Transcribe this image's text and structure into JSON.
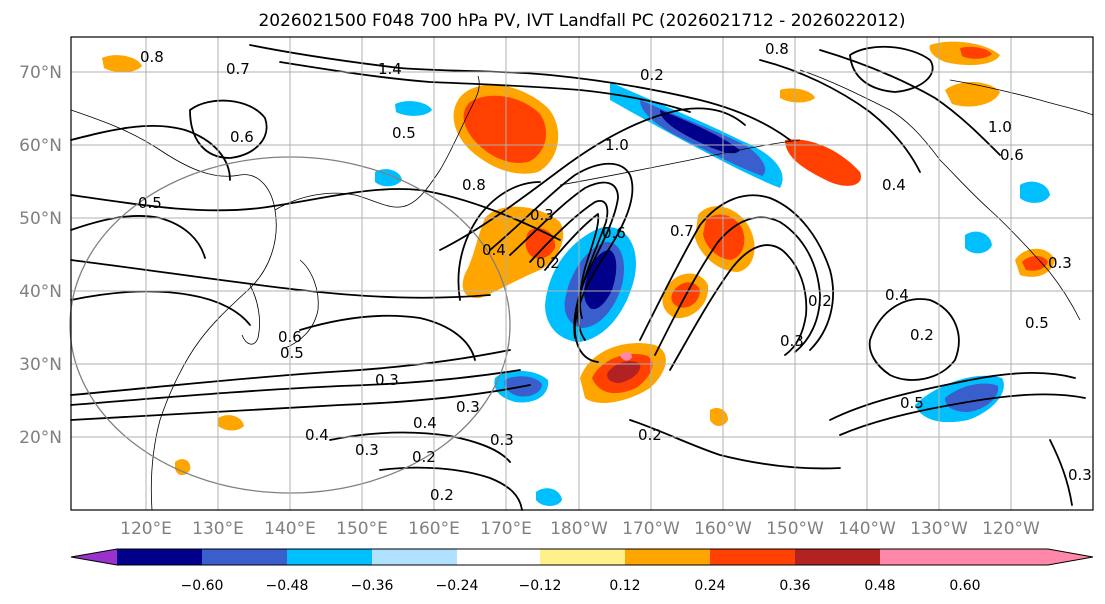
{
  "title": "2026021500 F048 700 hPa PV, IVT Landfall PC (2026021712 - 2026022012)",
  "latitude_labels": [
    "70°N",
    "60°N",
    "50°N",
    "40°N",
    "30°N",
    "20°N"
  ],
  "longitude_labels": [
    "120°E",
    "130°E",
    "140°E",
    "150°E",
    "160°E",
    "170°E",
    "180°W",
    "170°W",
    "160°W",
    "150°W",
    "140°W",
    "130°W",
    "120°W"
  ],
  "colorbar": {
    "tick_labels": [
      "−0.60",
      "−0.48",
      "−0.36",
      "−0.24",
      "−0.12",
      "0.12",
      "0.24",
      "0.36",
      "0.48",
      "0.60"
    ],
    "colors": [
      "#9932cc",
      "#00008b",
      "#3a5fcd",
      "#00bfff",
      "#b0e2ff",
      "#ffffff",
      "#fff08a",
      "#ffa500",
      "#ff4000",
      "#b22222",
      "#ff88aa"
    ]
  },
  "contour_labels": [
    "0.8",
    "0.7",
    "1.4",
    "0.2",
    "0.8",
    "0.6",
    "0.5",
    "0.8",
    "1.0",
    "0.4",
    "0.6",
    "0.5",
    "0.3",
    "0.2",
    "0.4",
    "0.6",
    "0.7",
    "0.3",
    "0.5",
    "0.3",
    "0.2",
    "0.4",
    "0.3",
    "0.4",
    "0.3",
    "0.2",
    "0.2",
    "0.3",
    "0.4",
    "0.2",
    "0.5",
    "0.6",
    "1.0",
    "0.5",
    "0.2",
    "0.3",
    "0.3"
  ]
}
